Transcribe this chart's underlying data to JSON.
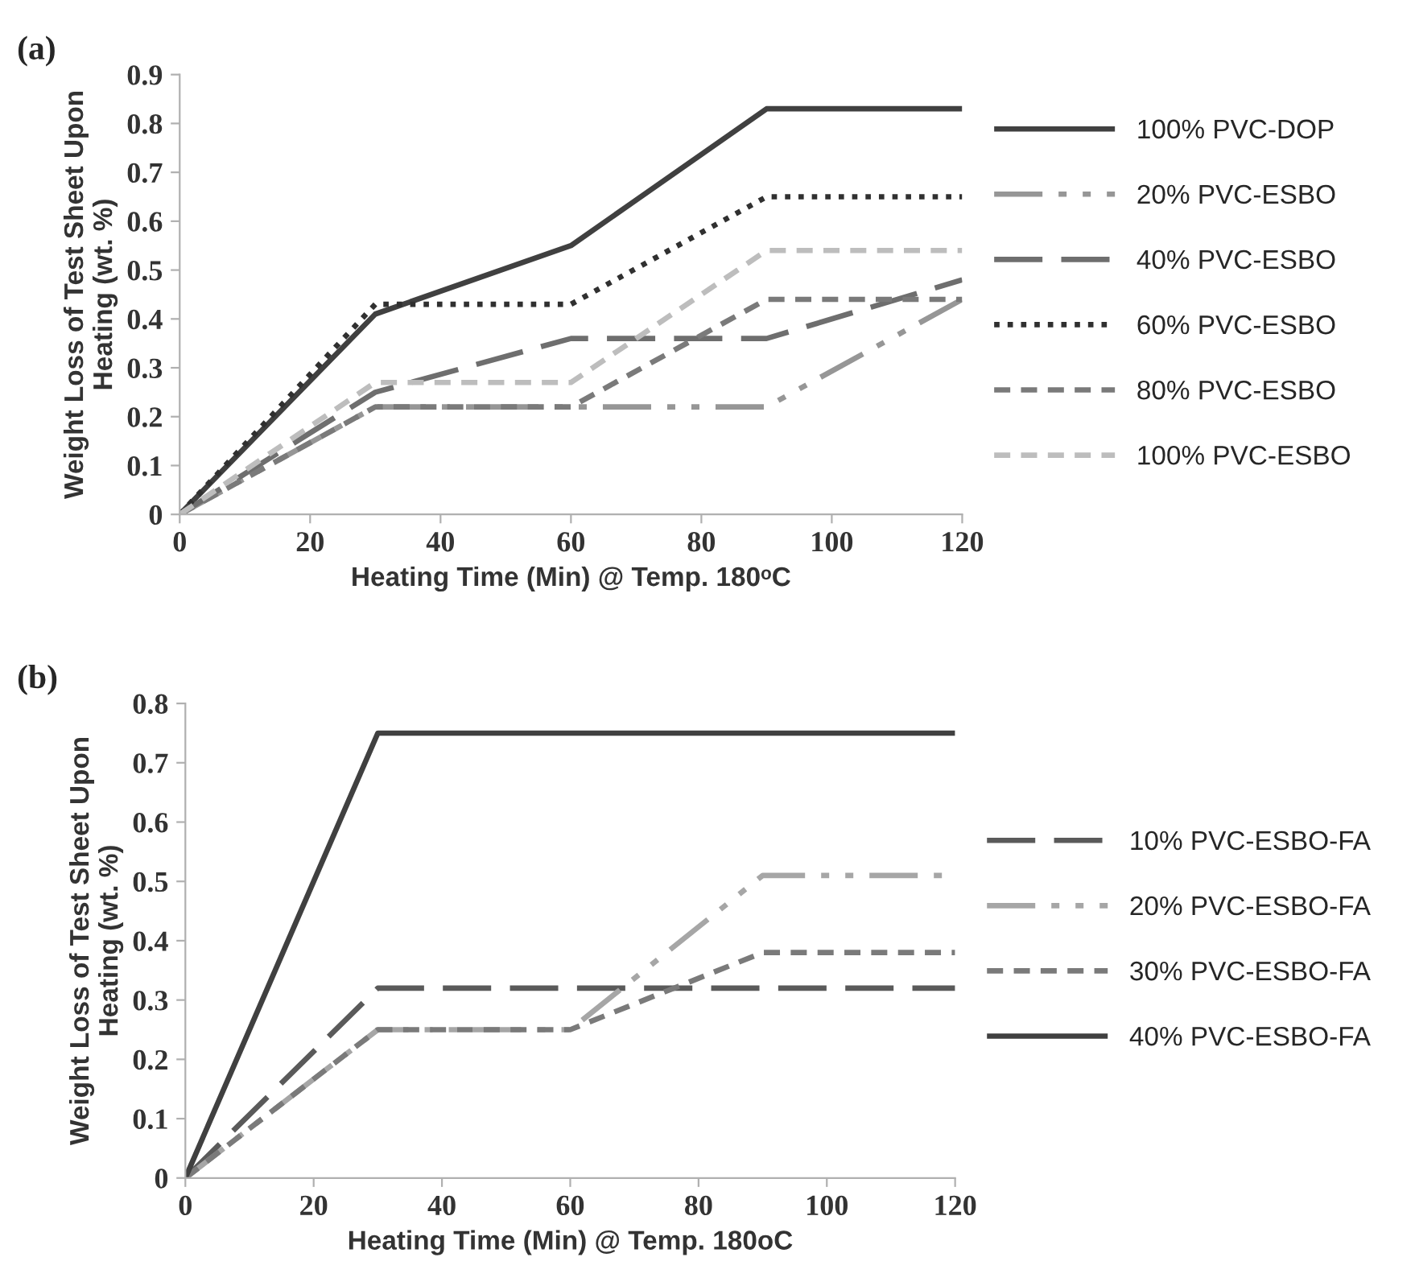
{
  "chart_data": [
    {
      "type": "line",
      "title": "(a)",
      "xlabel": "Heating Time (Min) @ Temp. 180ᵒC",
      "ylabel": "Weight Loss of Test Sheet Upon\nHeating (wt. %)",
      "x": [
        0,
        30,
        60,
        90,
        120
      ],
      "xlim": [
        0,
        120
      ],
      "xticks": [
        0,
        20,
        40,
        60,
        80,
        100,
        120
      ],
      "ylim": [
        0,
        0.9
      ],
      "yticks": [
        0,
        0.1,
        0.2,
        0.3,
        0.4,
        0.5,
        0.6,
        0.7,
        0.8,
        0.9
      ],
      "grid": false,
      "legend": "right",
      "series": [
        {
          "name": "100% PVC-DOP",
          "color": "#404040",
          "line_style": "solid",
          "values": [
            0,
            0.41,
            0.55,
            0.83,
            0.83
          ]
        },
        {
          "name": "20% PVC-ESBO",
          "color": "#969696",
          "line_style": "dashdot",
          "values": [
            0,
            0.22,
            0.22,
            0.22,
            0.44
          ]
        },
        {
          "name": "40% PVC-ESBO",
          "color": "#6e6e6e",
          "line_style": "longdash",
          "values": [
            0,
            0.25,
            0.36,
            0.36,
            0.48
          ]
        },
        {
          "name": "60% PVC-ESBO",
          "color": "#303030",
          "line_style": "dotted",
          "values": [
            0,
            0.43,
            0.43,
            0.65,
            0.65
          ]
        },
        {
          "name": "80% PVC-ESBO",
          "color": "#7a7a7a",
          "line_style": "dashed",
          "values": [
            0,
            0.22,
            0.22,
            0.44,
            0.44
          ]
        },
        {
          "name": "100% PVC-ESBO",
          "color": "#bdbdbd",
          "line_style": "dashed",
          "values": [
            0,
            0.27,
            0.27,
            0.54,
            0.54
          ]
        }
      ]
    },
    {
      "type": "line",
      "title": "(b)",
      "xlabel": "Heating Time (Min) @ Temp. 180oC",
      "ylabel": "Weight Loss of Test Sheet Upon\nHeating (wt. %)",
      "x": [
        0,
        30,
        60,
        90,
        120
      ],
      "xlim": [
        0,
        120
      ],
      "xticks": [
        0,
        20,
        40,
        60,
        80,
        100,
        120
      ],
      "ylim": [
        0,
        0.8
      ],
      "yticks": [
        0,
        0.1,
        0.2,
        0.3,
        0.4,
        0.5,
        0.6,
        0.7,
        0.8
      ],
      "grid": false,
      "legend": "right",
      "series": [
        {
          "name": "10% PVC-ESBO-FA",
          "color": "#5a5a5a",
          "line_style": "longdash",
          "values": [
            0,
            0.32,
            0.32,
            0.32,
            0.32
          ]
        },
        {
          "name": "20% PVC-ESBO-FA",
          "color": "#a6a6a6",
          "line_style": "dashdot",
          "values": [
            0,
            0.25,
            0.25,
            0.51,
            0.51
          ]
        },
        {
          "name": "30% PVC-ESBO-FA",
          "color": "#7a7a7a",
          "line_style": "dashed",
          "values": [
            0,
            0.25,
            0.25,
            0.38,
            0.38
          ]
        },
        {
          "name": "40% PVC-ESBO-FA",
          "color": "#404040",
          "line_style": "solid",
          "values": [
            0,
            0.75,
            0.75,
            0.75,
            0.75
          ]
        }
      ]
    }
  ]
}
